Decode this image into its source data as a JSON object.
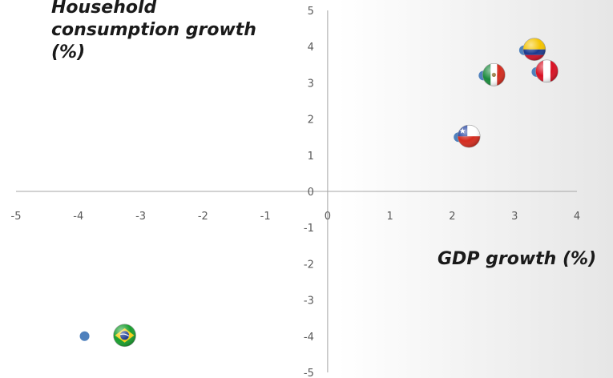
{
  "chart_data": {
    "type": "scatter",
    "title": "",
    "xlabel": "GDP growth (%)",
    "ylabel_lines": [
      "Household",
      "consumption growth",
      "(%)"
    ],
    "xlim": [
      -5,
      4
    ],
    "ylim": [
      -5,
      5
    ],
    "x_ticks": [
      "-5",
      "-4",
      "-3",
      "-2",
      "-1",
      "0",
      "1",
      "2",
      "3",
      "4"
    ],
    "y_ticks": [
      "5",
      "4",
      "3",
      "2",
      "1",
      "0",
      "-1",
      "-2",
      "-3",
      "-4",
      "-5"
    ],
    "marker_color": "#4f81bd",
    "points": [
      {
        "x": -3.9,
        "y": -4.0,
        "flag": "brazil"
      },
      {
        "x": 2.5,
        "y": 3.2,
        "flag": "mexico"
      },
      {
        "x": 3.15,
        "y": 3.9,
        "flag": "colombia"
      },
      {
        "x": 3.35,
        "y": 3.3,
        "flag": "peru"
      },
      {
        "x": 2.1,
        "y": 1.5,
        "flag": "chile"
      }
    ]
  }
}
